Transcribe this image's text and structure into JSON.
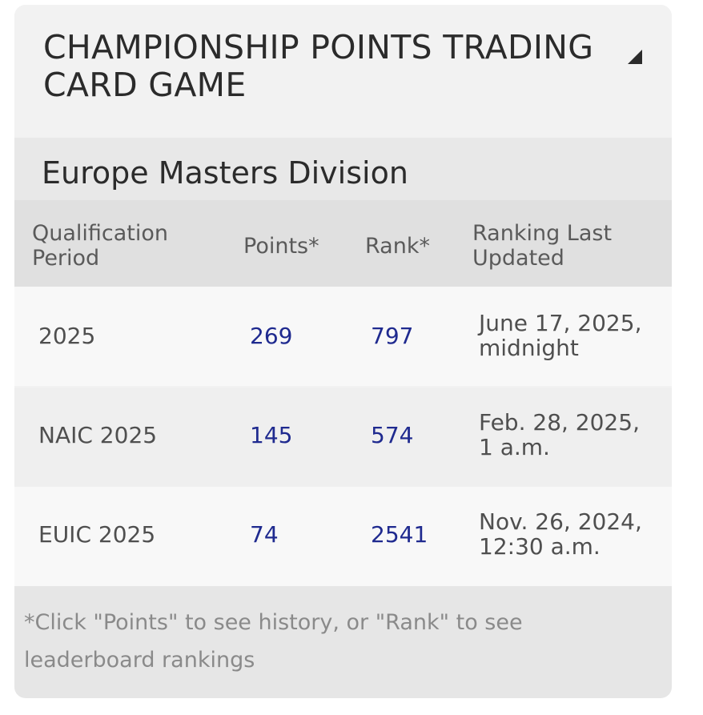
{
  "header": {
    "title": "CHAMPIONSHIP POINTS TRADING CARD GAME"
  },
  "division": {
    "title": "Europe Masters Division"
  },
  "table": {
    "columns": [
      "Qualification Period",
      "Points*",
      "Rank*",
      "Ranking Last Updated"
    ],
    "rows": [
      {
        "period": "2025",
        "points": "269",
        "rank": "797",
        "updated": "June 17, 2025, midnight"
      },
      {
        "period": "NAIC 2025",
        "points": "145",
        "rank": "574",
        "updated": "Feb. 28, 2025, 1 a.m."
      },
      {
        "period": "EUIC 2025",
        "points": "74",
        "rank": "2541",
        "updated": "Nov. 26, 2024, 12:30 a.m."
      }
    ]
  },
  "footer": {
    "note": "*Click \"Points\" to see history, or \"Rank\" to see leaderboard rankings"
  },
  "colors": {
    "link": "#1f2a8f",
    "text": "#2b2b2b"
  }
}
